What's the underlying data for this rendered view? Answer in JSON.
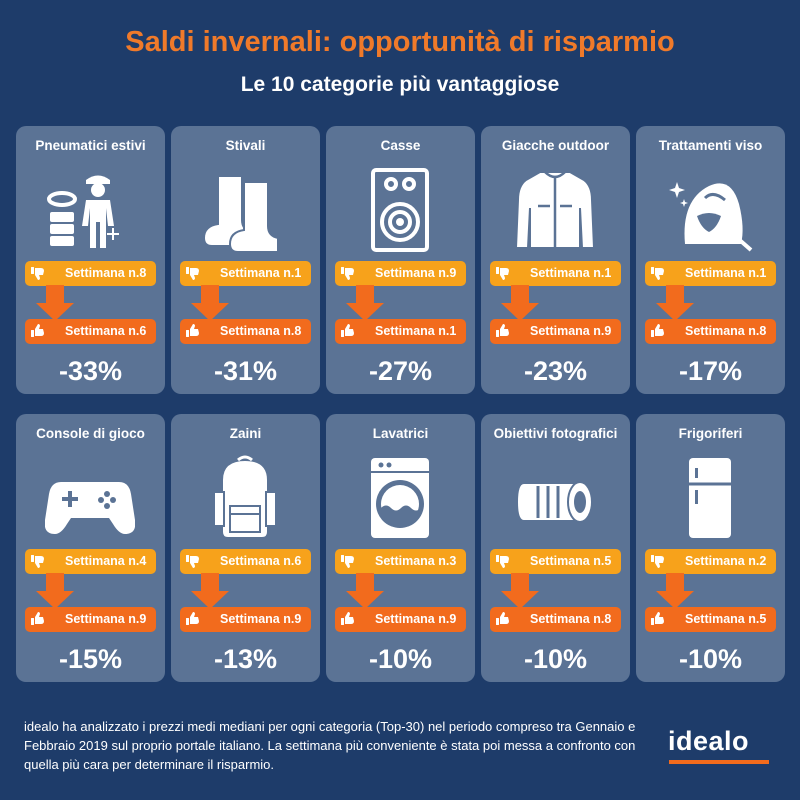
{
  "header": {
    "title": "Saldi invernali: opportunità di risparmio",
    "subtitle": "Le 10 categorie più vantaggiose"
  },
  "colors": {
    "background": "#1e3c6a",
    "card": "#5b7395",
    "accent_orange": "#f26b1d",
    "accent_yellow": "#f7a21b"
  },
  "categories": [
    {
      "name": "Pneumatici estivi",
      "icon": "tire-worker-icon",
      "worst_week": "Settimana n.8",
      "best_week": "Settimana n.6",
      "saving": "-33%"
    },
    {
      "name": "Stivali",
      "icon": "boots-icon",
      "worst_week": "Settimana n.1",
      "best_week": "Settimana n.8",
      "saving": "-31%"
    },
    {
      "name": "Casse",
      "icon": "speaker-icon",
      "worst_week": "Settimana n.9",
      "best_week": "Settimana n.1",
      "saving": "-27%"
    },
    {
      "name": "Giacche outdoor",
      "icon": "jacket-icon",
      "worst_week": "Settimana n.1",
      "best_week": "Settimana n.9",
      "saving": "-23%"
    },
    {
      "name": "Trattamenti viso",
      "icon": "face-treatment-icon",
      "worst_week": "Settimana n.1",
      "best_week": "Settimana n.8",
      "saving": "-17%"
    },
    {
      "name": "Console di gioco",
      "icon": "gamepad-icon",
      "worst_week": "Settimana n.4",
      "best_week": "Settimana n.9",
      "saving": "-15%"
    },
    {
      "name": "Zaini",
      "icon": "backpack-icon",
      "worst_week": "Settimana n.6",
      "best_week": "Settimana n.9",
      "saving": "-13%"
    },
    {
      "name": "Lavatrici",
      "icon": "washing-machine-icon",
      "worst_week": "Settimana n.3",
      "best_week": "Settimana n.9",
      "saving": "-10%"
    },
    {
      "name": "Obiettivi fotografici",
      "icon": "camera-lens-icon",
      "worst_week": "Settimana n.5",
      "best_week": "Settimana n.8",
      "saving": "-10%"
    },
    {
      "name": "Frigoriferi",
      "icon": "fridge-icon",
      "worst_week": "Settimana n.2",
      "best_week": "Settimana n.5",
      "saving": "-10%"
    }
  ],
  "footer": {
    "text": "idealo ha analizzato i prezzi medi mediani per ogni categoria (Top-30) nel periodo compreso tra Gennaio e Febbraio 2019 sul proprio portale italiano. La settimana più conveniente è stata poi messa a confronto con quella più cara per determinare il risparmio.",
    "logo": "idealo"
  }
}
